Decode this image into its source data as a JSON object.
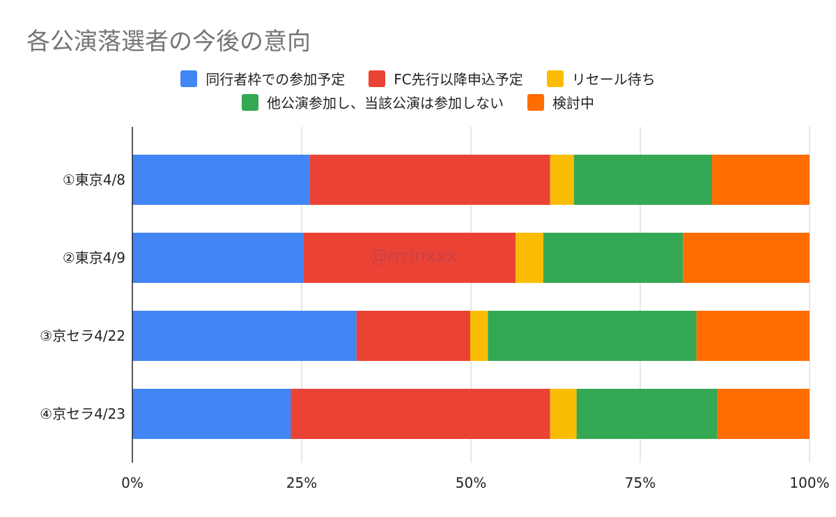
{
  "chart_data": {
    "type": "bar",
    "orientation": "horizontal",
    "stacked": "percent",
    "title": "各公演落選者の今後の意向",
    "categories": [
      "①東京4/8",
      "②東京4/9",
      "③京セラ4/22",
      "④京セラ4/23"
    ],
    "series": [
      {
        "name": "同行者枠での参加予定",
        "color": "#4285F4",
        "values": [
          26.2,
          25.3,
          33.1,
          23.4
        ]
      },
      {
        "name": "FC先行以降申込予定",
        "color": "#EA4335",
        "values": [
          35.5,
          31.3,
          16.8,
          38.3
        ]
      },
      {
        "name": "リセール待ち",
        "color": "#FBBC04",
        "values": [
          3.5,
          4.1,
          2.6,
          3.9
        ]
      },
      {
        "name": "他公演参加し、当該公演は参加しない",
        "color": "#34A853",
        "values": [
          20.4,
          20.6,
          30.8,
          20.8
        ]
      },
      {
        "name": "検討中",
        "color": "#FF6D01",
        "values": [
          14.4,
          18.7,
          16.7,
          13.6
        ]
      }
    ],
    "xlim": [
      0,
      100
    ],
    "x_ticks": [
      "0%",
      "25%",
      "50%",
      "75%",
      "100%"
    ],
    "grid": true,
    "legend": "top",
    "watermark": "@rrrinxxx"
  }
}
